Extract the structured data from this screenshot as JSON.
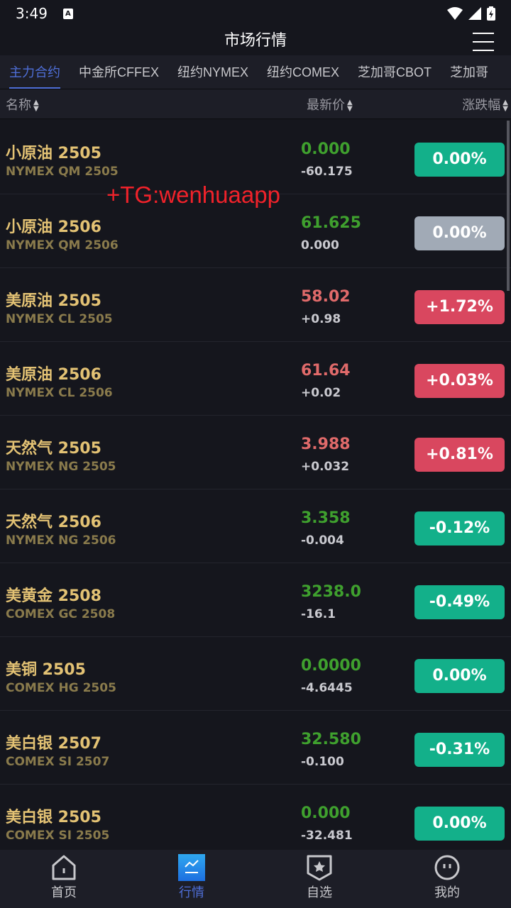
{
  "status": {
    "time": "3:49"
  },
  "header": {
    "title": "市场行情"
  },
  "tabs": [
    "主力合约",
    "中金所CFFEX",
    "纽约NYMEX",
    "纽约COMEX",
    "芝加哥CBOT",
    "芝加哥"
  ],
  "columns": {
    "name": "名称",
    "price": "最新价",
    "change": "涨跌幅"
  },
  "watermark": "+TG:wenhuaapp",
  "colors": {
    "up": "#e06a6a",
    "down": "#3fa02e",
    "up_badge": "#d9475f",
    "down_badge": "#13b08a",
    "flat_badge": "#a1aab6"
  },
  "rows": [
    {
      "name": "小原油 2505",
      "code": "NYMEX QM 2505",
      "price": "0.000",
      "change": "-60.175",
      "pct": "0.00%",
      "price_dir": "down",
      "badge": "down"
    },
    {
      "name": "小原油 2506",
      "code": "NYMEX QM 2506",
      "price": "61.625",
      "change": "0.000",
      "pct": "0.00%",
      "price_dir": "down",
      "badge": "flat"
    },
    {
      "name": "美原油 2505",
      "code": "NYMEX CL 2505",
      "price": "58.02",
      "change": "+0.98",
      "pct": "+1.72%",
      "price_dir": "up",
      "badge": "up"
    },
    {
      "name": "美原油 2506",
      "code": "NYMEX CL 2506",
      "price": "61.64",
      "change": "+0.02",
      "pct": "+0.03%",
      "price_dir": "up",
      "badge": "up"
    },
    {
      "name": "天然气 2505",
      "code": "NYMEX NG 2505",
      "price": "3.988",
      "change": "+0.032",
      "pct": "+0.81%",
      "price_dir": "up",
      "badge": "up"
    },
    {
      "name": "天然气 2506",
      "code": "NYMEX NG 2506",
      "price": "3.358",
      "change": "-0.004",
      "pct": "-0.12%",
      "price_dir": "down",
      "badge": "down"
    },
    {
      "name": "美黄金 2508",
      "code": "COMEX GC 2508",
      "price": "3238.0",
      "change": "-16.1",
      "pct": "-0.49%",
      "price_dir": "down",
      "badge": "down"
    },
    {
      "name": "美铜 2505",
      "code": "COMEX HG 2505",
      "price": "0.0000",
      "change": "-4.6445",
      "pct": "0.00%",
      "price_dir": "down",
      "badge": "down"
    },
    {
      "name": "美白银 2507",
      "code": "COMEX SI 2507",
      "price": "32.580",
      "change": "-0.100",
      "pct": "-0.31%",
      "price_dir": "down",
      "badge": "down"
    },
    {
      "name": "美白银 2505",
      "code": "COMEX SI 2505",
      "price": "0.000",
      "change": "-32.481",
      "pct": "0.00%",
      "price_dir": "down",
      "badge": "down"
    }
  ],
  "nav": [
    {
      "label": "首页",
      "icon": "home-icon"
    },
    {
      "label": "行情",
      "icon": "chart-icon",
      "active": true
    },
    {
      "label": "自选",
      "icon": "star-shield-icon"
    },
    {
      "label": "我的",
      "icon": "profile-icon"
    }
  ]
}
